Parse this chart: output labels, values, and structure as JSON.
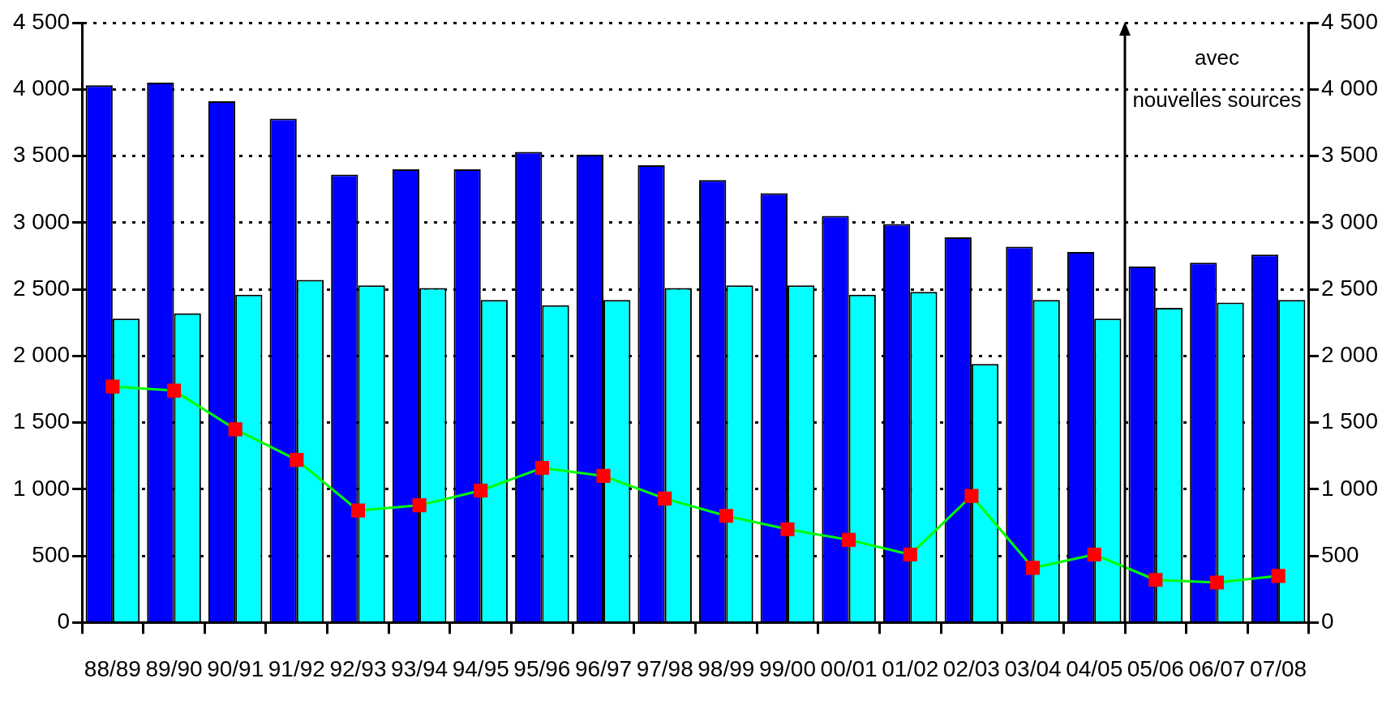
{
  "chart_data": {
    "type": "bar",
    "categories": [
      "88/89",
      "89/90",
      "90/91",
      "91/92",
      "92/93",
      "93/94",
      "94/95",
      "95/96",
      "96/97",
      "97/98",
      "98/99",
      "99/00",
      "00/01",
      "01/02",
      "02/03",
      "03/04",
      "04/05",
      "05/06",
      "06/07",
      "07/08"
    ],
    "series": [
      {
        "color": "#0000ff",
        "values": [
          4030,
          4050,
          3910,
          3780,
          3360,
          3400,
          3400,
          3530,
          3510,
          3430,
          3320,
          3220,
          3050,
          2990,
          2890,
          2820,
          2780,
          2670,
          2700,
          2760
        ]
      },
      {
        "color": "#00ffff",
        "values": [
          2280,
          2320,
          2460,
          2570,
          2530,
          2510,
          2420,
          2380,
          2420,
          2510,
          2530,
          2530,
          2460,
          2480,
          1940,
          2420,
          2280,
          2360,
          2400,
          2420
        ]
      },
      {
        "type": "line",
        "color": "#00ff00",
        "marker": "square",
        "values": [
          1770,
          1740,
          1450,
          1220,
          840,
          880,
          990,
          1160,
          1100,
          930,
          800,
          700,
          620,
          510,
          950,
          410,
          510,
          320,
          300,
          350
        ]
      }
    ],
    "ylim": [
      0,
      4500
    ],
    "yticks": [
      0,
      500,
      {
        "value": 1000,
        "label": "1 000"
      },
      {
        "value": 1500,
        "label": "1 500"
      },
      {
        "value": 2000,
        "label": "2 000"
      },
      {
        "value": 2500,
        "label": "2 500"
      },
      {
        "value": 3000,
        "label": "3 000"
      },
      {
        "value": 3500,
        "label": "3 500"
      },
      {
        "value": 4000,
        "label": "4 000"
      },
      {
        "value": 4500,
        "label": "4 500"
      }
    ],
    "y2lim": [
      0,
      4500
    ],
    "y2ticks": [
      0,
      500,
      {
        "value": 1000,
        "label": "1 000"
      },
      {
        "value": 1500,
        "label": "1 500"
      },
      {
        "value": 2000,
        "label": "2 000"
      },
      {
        "value": 2500,
        "label": "2 500"
      },
      {
        "value": 3000,
        "label": "3 000"
      },
      {
        "value": 3500,
        "label": "3 500"
      },
      {
        "value": 4000,
        "label": "4 000"
      },
      {
        "value": 4500,
        "label": "4 500"
      }
    ],
    "grid": "y",
    "legend": false,
    "ref_lines": [
      {
        "axis": "x",
        "value": "05/06",
        "label": "avec nouvelles sources",
        "color": "#000000"
      }
    ]
  }
}
